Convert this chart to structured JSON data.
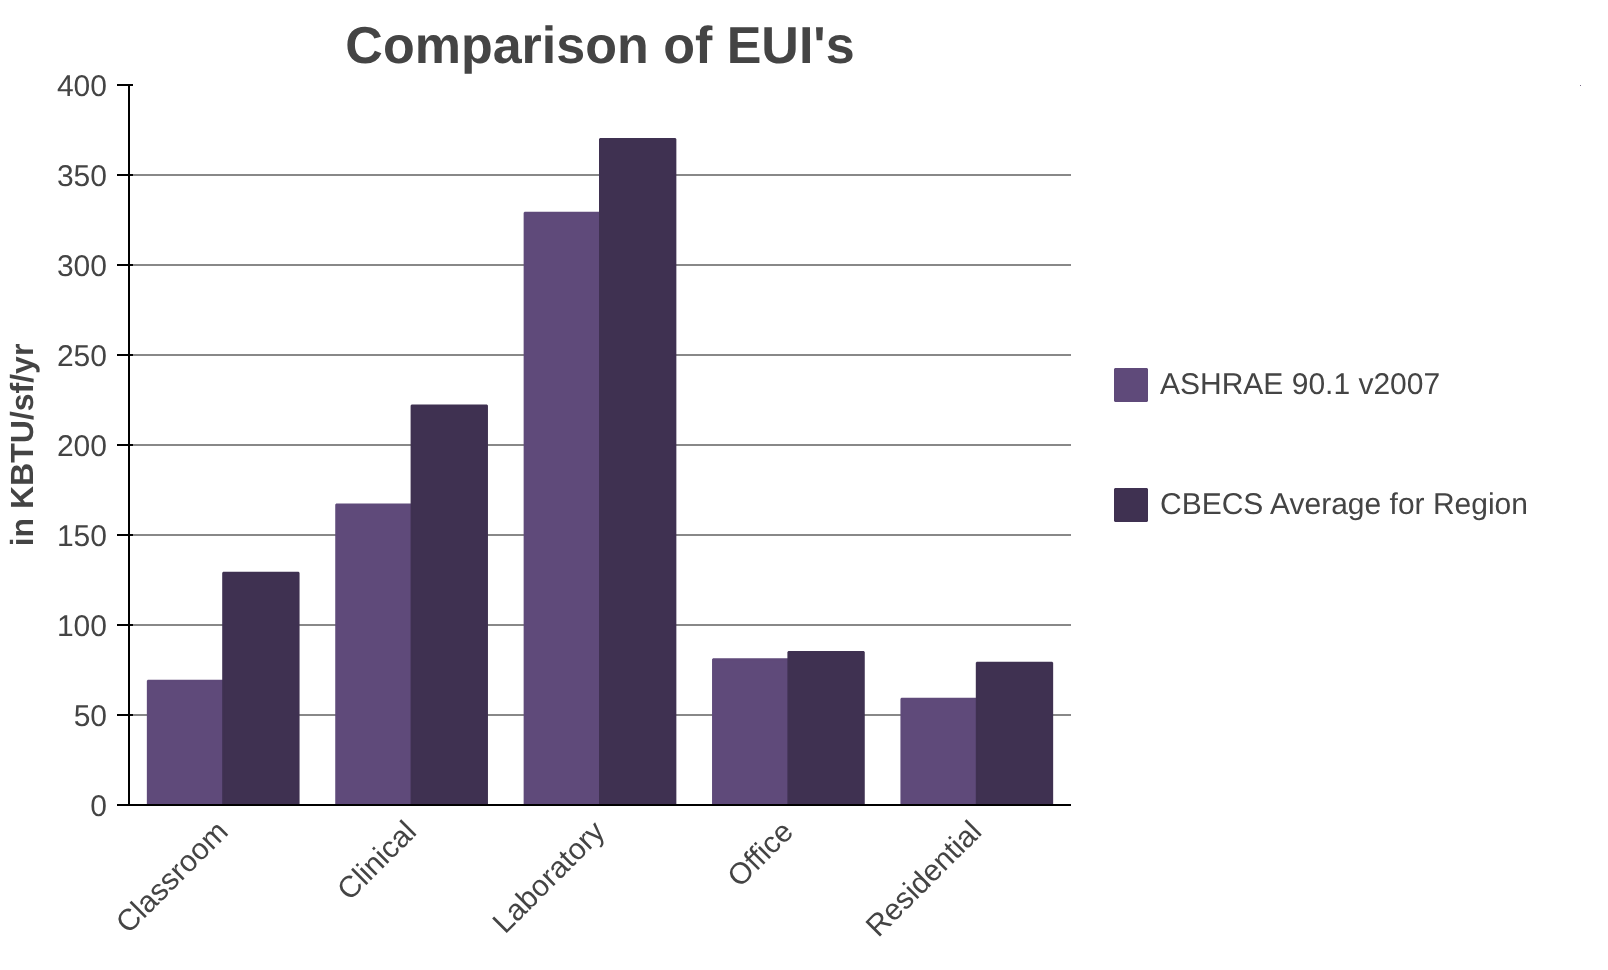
{
  "chart_data": {
    "type": "bar",
    "title": "Comparison of EUI's",
    "ylabel": "in KBTU/sf/yr",
    "categories": [
      "Classroom",
      "Clinical",
      "Laboratory",
      "Office",
      "Residential"
    ],
    "series": [
      {
        "name": "ASHRAE 90.1 v2007",
        "color": "#5f4a7a",
        "values": [
          69,
          167,
          329,
          81,
          59
        ]
      },
      {
        "name": "CBECS Average for Region",
        "color": "#3f3151",
        "values": [
          129,
          222,
          370,
          85,
          79
        ]
      }
    ],
    "ylim": [
      0,
      400
    ],
    "yticks": [
      0,
      50,
      100,
      150,
      200,
      250,
      300,
      350,
      400
    ],
    "grid": "y",
    "legend": "right"
  }
}
